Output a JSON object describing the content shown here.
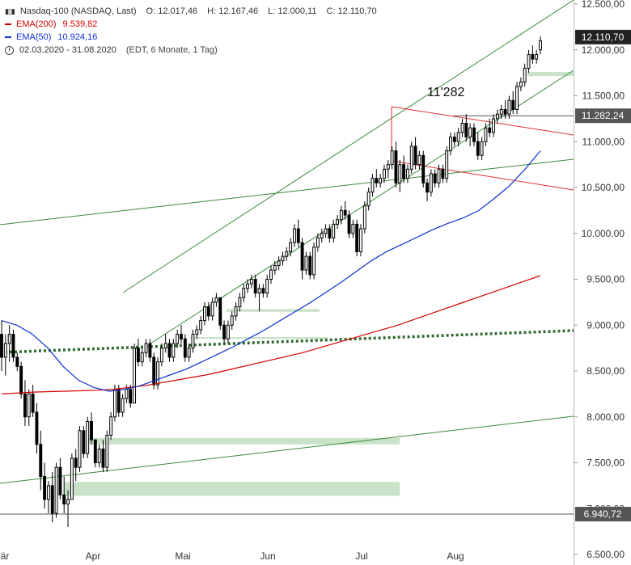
{
  "legend": {
    "instrument": "Nasdaq-100 (NASDAQ, Last)",
    "open": "O: 12.017,46",
    "high": "H: 12.167,46",
    "low": "L: 12.000,11",
    "close": "C: 12.110,70",
    "ema200_label": "EMA(200)",
    "ema200_value": "9.539,82",
    "ema50_label": "EMA(50)",
    "ema50_value": "10.924,16",
    "range": "02.03.2020 - 31.08.2020",
    "range_info": "(EDT, 6 Monate, 1 Tag)",
    "candles_icon": "candlestick-icon",
    "clock_icon": "clock-icon"
  },
  "colors": {
    "ema200": "#d40000",
    "ema50": "#1030d0",
    "channel": "#3a8a3a",
    "red_channel": "#e03030",
    "dotted_trend": "#2e6b2e",
    "zone": "#c9e3c9",
    "candle": "#000000",
    "last_price_bg": "#222222",
    "level_bg": "#555555"
  },
  "chart_data": {
    "type": "candlestick",
    "ylim": [
      6500,
      12500
    ],
    "y_ticks": [
      "12.500,00",
      "12.000,00",
      "11.500,00",
      "11.000,00",
      "10.500,00",
      "10.000,00",
      "9.500,00",
      "9.000,00",
      "8.500,00",
      "8.000,00",
      "7.500,00",
      "7.000,00",
      "6.500,00"
    ],
    "x_labels": [
      "är",
      "Apr",
      "Mai",
      "Jun",
      "Jul",
      "Aug"
    ],
    "last_price_label": "12.110,70",
    "level_label_1": "11.282,24",
    "level_label_2": "6.940,72",
    "annotation": "11'282",
    "candles": [
      {
        "o": 8900,
        "h": 9050,
        "l": 8500,
        "c": 8650
      },
      {
        "o": 8650,
        "h": 8900,
        "l": 8450,
        "c": 8800
      },
      {
        "o": 8800,
        "h": 9000,
        "l": 8600,
        "c": 8900
      },
      {
        "o": 8900,
        "h": 8950,
        "l": 8600,
        "c": 8650
      },
      {
        "o": 8650,
        "h": 8700,
        "l": 8500,
        "c": 8550
      },
      {
        "o": 8550,
        "h": 8600,
        "l": 8200,
        "c": 8250
      },
      {
        "o": 8250,
        "h": 8400,
        "l": 7900,
        "c": 8000
      },
      {
        "o": 8000,
        "h": 8300,
        "l": 7900,
        "c": 8250
      },
      {
        "o": 8250,
        "h": 8350,
        "l": 8000,
        "c": 8050
      },
      {
        "o": 8050,
        "h": 8150,
        "l": 7600,
        "c": 7700
      },
      {
        "o": 7700,
        "h": 7850,
        "l": 7200,
        "c": 7350
      },
      {
        "o": 7350,
        "h": 7500,
        "l": 7000,
        "c": 7100
      },
      {
        "o": 7100,
        "h": 7300,
        "l": 6950,
        "c": 7250
      },
      {
        "o": 7250,
        "h": 7400,
        "l": 6850,
        "c": 6950
      },
      {
        "o": 6950,
        "h": 7500,
        "l": 6900,
        "c": 7450
      },
      {
        "o": 7450,
        "h": 7550,
        "l": 7100,
        "c": 7150
      },
      {
        "o": 7150,
        "h": 7350,
        "l": 6950,
        "c": 7050
      },
      {
        "o": 7050,
        "h": 7200,
        "l": 6800,
        "c": 7100
      },
      {
        "o": 7100,
        "h": 7600,
        "l": 7100,
        "c": 7550
      },
      {
        "o": 7550,
        "h": 7650,
        "l": 7300,
        "c": 7450
      },
      {
        "o": 7450,
        "h": 7900,
        "l": 7400,
        "c": 7850
      },
      {
        "o": 7850,
        "h": 7900,
        "l": 7550,
        "c": 7600
      },
      {
        "o": 7600,
        "h": 8000,
        "l": 7550,
        "c": 7950
      },
      {
        "o": 7950,
        "h": 8050,
        "l": 7700,
        "c": 7750
      },
      {
        "o": 7750,
        "h": 7750,
        "l": 7450,
        "c": 7500
      },
      {
        "o": 7500,
        "h": 7700,
        "l": 7450,
        "c": 7650
      },
      {
        "o": 7650,
        "h": 7750,
        "l": 7400,
        "c": 7450
      },
      {
        "o": 7450,
        "h": 7850,
        "l": 7400,
        "c": 7800
      },
      {
        "o": 7800,
        "h": 8050,
        "l": 7750,
        "c": 8000
      },
      {
        "o": 8000,
        "h": 8350,
        "l": 7950,
        "c": 8300
      },
      {
        "o": 8300,
        "h": 8350,
        "l": 8000,
        "c": 8050
      },
      {
        "o": 8050,
        "h": 8250,
        "l": 8000,
        "c": 8200
      },
      {
        "o": 8200,
        "h": 8350,
        "l": 8150,
        "c": 8300
      },
      {
        "o": 8300,
        "h": 8350,
        "l": 8100,
        "c": 8150
      },
      {
        "o": 8150,
        "h": 8800,
        "l": 8150,
        "c": 8750
      },
      {
        "o": 8750,
        "h": 8850,
        "l": 8550,
        "c": 8600
      },
      {
        "o": 8600,
        "h": 8750,
        "l": 8550,
        "c": 8700
      },
      {
        "o": 8700,
        "h": 8850,
        "l": 8650,
        "c": 8800
      },
      {
        "o": 8800,
        "h": 8850,
        "l": 8600,
        "c": 8650
      },
      {
        "o": 8650,
        "h": 8700,
        "l": 8300,
        "c": 8350
      },
      {
        "o": 8350,
        "h": 8650,
        "l": 8300,
        "c": 8600
      },
      {
        "o": 8600,
        "h": 8800,
        "l": 8550,
        "c": 8750
      },
      {
        "o": 8750,
        "h": 8900,
        "l": 8700,
        "c": 8800
      },
      {
        "o": 8800,
        "h": 8850,
        "l": 8600,
        "c": 8650
      },
      {
        "o": 8650,
        "h": 8850,
        "l": 8600,
        "c": 8800
      },
      {
        "o": 8800,
        "h": 8950,
        "l": 8750,
        "c": 8900
      },
      {
        "o": 8900,
        "h": 9000,
        "l": 8800,
        "c": 8850
      },
      {
        "o": 8850,
        "h": 8900,
        "l": 8600,
        "c": 8650
      },
      {
        "o": 8650,
        "h": 8800,
        "l": 8600,
        "c": 8750
      },
      {
        "o": 8750,
        "h": 8950,
        "l": 8700,
        "c": 8900
      },
      {
        "o": 8900,
        "h": 9000,
        "l": 8850,
        "c": 8950
      },
      {
        "o": 8950,
        "h": 9100,
        "l": 8900,
        "c": 9050
      },
      {
        "o": 9050,
        "h": 9250,
        "l": 9000,
        "c": 9200
      },
      {
        "o": 9200,
        "h": 9250,
        "l": 9050,
        "c": 9100
      },
      {
        "o": 9100,
        "h": 9300,
        "l": 9050,
        "c": 9250
      },
      {
        "o": 9250,
        "h": 9350,
        "l": 9200,
        "c": 9300
      },
      {
        "o": 9300,
        "h": 9300,
        "l": 8950,
        "c": 9000
      },
      {
        "o": 9000,
        "h": 9050,
        "l": 8800,
        "c": 8850
      },
      {
        "o": 8850,
        "h": 9050,
        "l": 8800,
        "c": 9000
      },
      {
        "o": 9000,
        "h": 9150,
        "l": 8950,
        "c": 9100
      },
      {
        "o": 9100,
        "h": 9250,
        "l": 9050,
        "c": 9200
      },
      {
        "o": 9200,
        "h": 9350,
        "l": 9150,
        "c": 9300
      },
      {
        "o": 9300,
        "h": 9450,
        "l": 9250,
        "c": 9400
      },
      {
        "o": 9400,
        "h": 9500,
        "l": 9350,
        "c": 9450
      },
      {
        "o": 9450,
        "h": 9550,
        "l": 9400,
        "c": 9500
      },
      {
        "o": 9500,
        "h": 9550,
        "l": 9300,
        "c": 9350
      },
      {
        "o": 9350,
        "h": 9450,
        "l": 9150,
        "c": 9400
      },
      {
        "o": 9400,
        "h": 9450,
        "l": 9300,
        "c": 9350
      },
      {
        "o": 9350,
        "h": 9550,
        "l": 9300,
        "c": 9500
      },
      {
        "o": 9500,
        "h": 9650,
        "l": 9450,
        "c": 9600
      },
      {
        "o": 9600,
        "h": 9700,
        "l": 9550,
        "c": 9650
      },
      {
        "o": 9650,
        "h": 9750,
        "l": 9600,
        "c": 9700
      },
      {
        "o": 9700,
        "h": 9800,
        "l": 9650,
        "c": 9750
      },
      {
        "o": 9750,
        "h": 9850,
        "l": 9700,
        "c": 9800
      },
      {
        "o": 9800,
        "h": 9950,
        "l": 9750,
        "c": 9900
      },
      {
        "o": 9900,
        "h": 10100,
        "l": 9850,
        "c": 10050
      },
      {
        "o": 10050,
        "h": 10150,
        "l": 9850,
        "c": 9900
      },
      {
        "o": 9900,
        "h": 9950,
        "l": 9500,
        "c": 9600
      },
      {
        "o": 9600,
        "h": 9800,
        "l": 9550,
        "c": 9750
      },
      {
        "o": 9750,
        "h": 9800,
        "l": 9500,
        "c": 9550
      },
      {
        "o": 9550,
        "h": 9900,
        "l": 9500,
        "c": 9850
      },
      {
        "o": 9850,
        "h": 10000,
        "l": 9800,
        "c": 9950
      },
      {
        "o": 9950,
        "h": 10050,
        "l": 9900,
        "c": 10000
      },
      {
        "o": 10000,
        "h": 10100,
        "l": 9950,
        "c": 10050
      },
      {
        "o": 10050,
        "h": 10100,
        "l": 9900,
        "c": 9950
      },
      {
        "o": 9950,
        "h": 10150,
        "l": 9900,
        "c": 10100
      },
      {
        "o": 10100,
        "h": 10200,
        "l": 10050,
        "c": 10150
      },
      {
        "o": 10150,
        "h": 10300,
        "l": 10100,
        "c": 10250
      },
      {
        "o": 10250,
        "h": 10350,
        "l": 10150,
        "c": 10200
      },
      {
        "o": 10200,
        "h": 10250,
        "l": 9950,
        "c": 10000
      },
      {
        "o": 10000,
        "h": 10150,
        "l": 9950,
        "c": 10100
      },
      {
        "o": 10100,
        "h": 10150,
        "l": 9750,
        "c": 9800
      },
      {
        "o": 9800,
        "h": 10100,
        "l": 9750,
        "c": 10050
      },
      {
        "o": 10050,
        "h": 10350,
        "l": 10000,
        "c": 10300
      },
      {
        "o": 10300,
        "h": 10500,
        "l": 10250,
        "c": 10450
      },
      {
        "o": 10450,
        "h": 10650,
        "l": 10400,
        "c": 10600
      },
      {
        "o": 10600,
        "h": 10700,
        "l": 10500,
        "c": 10550
      },
      {
        "o": 10550,
        "h": 10650,
        "l": 10500,
        "c": 10600
      },
      {
        "o": 10600,
        "h": 10750,
        "l": 10550,
        "c": 10700
      },
      {
        "o": 10700,
        "h": 10800,
        "l": 10600,
        "c": 10750
      },
      {
        "o": 10750,
        "h": 10950,
        "l": 10700,
        "c": 10900
      },
      {
        "o": 10900,
        "h": 11000,
        "l": 10500,
        "c": 10550
      },
      {
        "o": 10550,
        "h": 10800,
        "l": 10450,
        "c": 10750
      },
      {
        "o": 10750,
        "h": 10850,
        "l": 10550,
        "c": 10600
      },
      {
        "o": 10600,
        "h": 10750,
        "l": 10550,
        "c": 10700
      },
      {
        "o": 10700,
        "h": 11000,
        "l": 10650,
        "c": 10950
      },
      {
        "o": 10950,
        "h": 11050,
        "l": 10700,
        "c": 10750
      },
      {
        "o": 10750,
        "h": 10900,
        "l": 10700,
        "c": 10850
      },
      {
        "o": 10850,
        "h": 10900,
        "l": 10500,
        "c": 10550
      },
      {
        "o": 10550,
        "h": 10600,
        "l": 10350,
        "c": 10450
      },
      {
        "o": 10450,
        "h": 10700,
        "l": 10400,
        "c": 10650
      },
      {
        "o": 10650,
        "h": 10700,
        "l": 10500,
        "c": 10550
      },
      {
        "o": 10550,
        "h": 10750,
        "l": 10500,
        "c": 10700
      },
      {
        "o": 10700,
        "h": 10750,
        "l": 10550,
        "c": 10600
      },
      {
        "o": 10600,
        "h": 10950,
        "l": 10550,
        "c": 10900
      },
      {
        "o": 10900,
        "h": 11100,
        "l": 10850,
        "c": 11050
      },
      {
        "o": 11050,
        "h": 11100,
        "l": 10950,
        "c": 11000
      },
      {
        "o": 11000,
        "h": 11150,
        "l": 10950,
        "c": 11100
      },
      {
        "o": 11100,
        "h": 11250,
        "l": 11050,
        "c": 11200
      },
      {
        "o": 11200,
        "h": 11300,
        "l": 11000,
        "c": 11050
      },
      {
        "o": 11050,
        "h": 11200,
        "l": 10950,
        "c": 11150
      },
      {
        "o": 11150,
        "h": 11200,
        "l": 10950,
        "c": 11000
      },
      {
        "o": 11000,
        "h": 11100,
        "l": 10800,
        "c": 10850
      },
      {
        "o": 10850,
        "h": 11050,
        "l": 10800,
        "c": 11000
      },
      {
        "o": 11000,
        "h": 11200,
        "l": 10950,
        "c": 11150
      },
      {
        "o": 11150,
        "h": 11250,
        "l": 11050,
        "c": 11100
      },
      {
        "o": 11100,
        "h": 11300,
        "l": 11050,
        "c": 11250
      },
      {
        "o": 11250,
        "h": 11350,
        "l": 11200,
        "c": 11300
      },
      {
        "o": 11300,
        "h": 11400,
        "l": 11250,
        "c": 11350
      },
      {
        "o": 11350,
        "h": 11450,
        "l": 11250,
        "c": 11300
      },
      {
        "o": 11300,
        "h": 11500,
        "l": 11250,
        "c": 11450
      },
      {
        "o": 11450,
        "h": 11550,
        "l": 11300,
        "c": 11350
      },
      {
        "o": 11350,
        "h": 11650,
        "l": 11300,
        "c": 11600
      },
      {
        "o": 11600,
        "h": 11700,
        "l": 11550,
        "c": 11650
      },
      {
        "o": 11650,
        "h": 11850,
        "l": 11600,
        "c": 11800
      },
      {
        "o": 11800,
        "h": 12000,
        "l": 11750,
        "c": 11950
      },
      {
        "o": 11950,
        "h": 12050,
        "l": 11850,
        "c": 11900
      },
      {
        "o": 11900,
        "h": 12000,
        "l": 11850,
        "c": 11950
      },
      {
        "o": 12000,
        "h": 12150,
        "l": 11950,
        "c": 12100
      }
    ],
    "ema200": [
      8250,
      8260,
      8270,
      8275,
      8280,
      8285,
      8290,
      8300,
      8320,
      8340,
      8370,
      8400,
      8430,
      8460,
      8500,
      8540,
      8580,
      8620,
      8660,
      8700,
      8750,
      8800,
      8850,
      8900,
      8950,
      9000,
      9060,
      9120,
      9180,
      9240,
      9300,
      9360,
      9420,
      9480,
      9540
    ],
    "ema50": [
      9050,
      9000,
      8900,
      8750,
      8550,
      8400,
      8320,
      8280,
      8300,
      8340,
      8400,
      8460,
      8520,
      8600,
      8680,
      8760,
      8850,
      8940,
      9040,
      9140,
      9240,
      9350,
      9460,
      9580,
      9700,
      9800,
      9880,
      9960,
      10040,
      10110,
      10170,
      10250,
      10380,
      10520,
      10700,
      10900
    ]
  }
}
